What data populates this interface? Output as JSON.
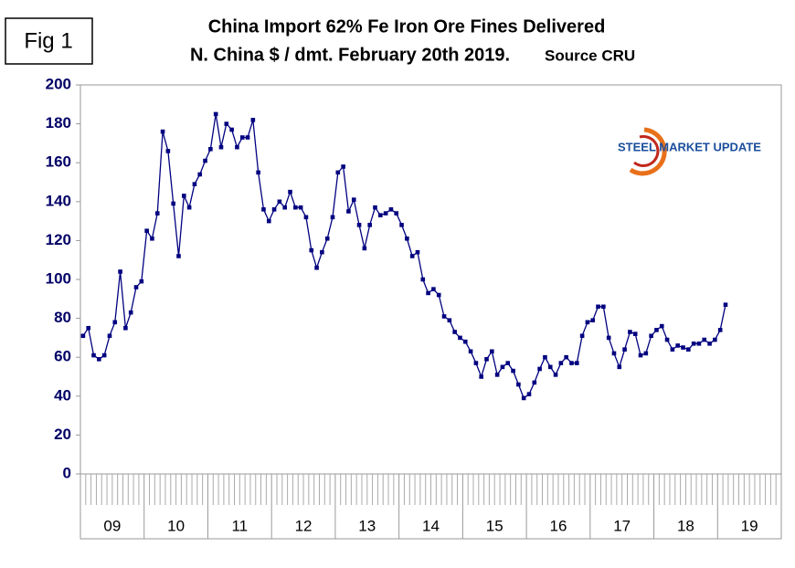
{
  "chart_data": {
    "type": "line",
    "fig_label": "Fig 1",
    "title": "China Import 62% Fe Iron Ore Fines Delivered",
    "subtitle": "N. China $ / dmt. February 20th 2019.",
    "source": "Source CRU",
    "logo": "STEEL MARKET UPDATE",
    "year_groups": [
      "09",
      "10",
      "11",
      "12",
      "13",
      "14",
      "15",
      "16",
      "17",
      "18",
      "19"
    ],
    "months_per_group": 12,
    "color": "#000080",
    "ylim": [
      0,
      200
    ],
    "yticks": [
      0,
      20,
      40,
      60,
      80,
      100,
      120,
      140,
      160,
      180,
      200
    ],
    "grid": false,
    "values": [
      71,
      75,
      61,
      59,
      61,
      71,
      78,
      104,
      75,
      83,
      96,
      99,
      125,
      121,
      134,
      176,
      166,
      139,
      112,
      143,
      137,
      149,
      154,
      161,
      167,
      185,
      168,
      180,
      177,
      168,
      173,
      173,
      182,
      155,
      136,
      130,
      136,
      140,
      137,
      145,
      137,
      137,
      132,
      115,
      106,
      114,
      121,
      132,
      155,
      158,
      135,
      141,
      128,
      116,
      128,
      137,
      133,
      134,
      136,
      134,
      128,
      121,
      112,
      114,
      100,
      93,
      95,
      92,
      81,
      79,
      73,
      70,
      68,
      63,
      57,
      50,
      59,
      63,
      51,
      55,
      57,
      53,
      46,
      39,
      41,
      47,
      54,
      60,
      55,
      51,
      57,
      60,
      57,
      57,
      71,
      78,
      79,
      86,
      86,
      70,
      62,
      55,
      64,
      73,
      72,
      61,
      62,
      71,
      74,
      76,
      69,
      64,
      66,
      65,
      64,
      67,
      67,
      69,
      67,
      69,
      74,
      87
    ]
  }
}
